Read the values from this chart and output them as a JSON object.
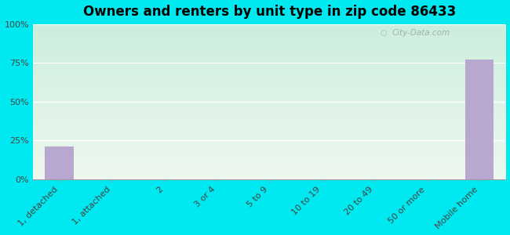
{
  "title": "Owners and renters by unit type in zip code 86433",
  "categories": [
    "1, detached",
    "1, attached",
    "2",
    "3 or 4",
    "5 to 9",
    "10 to 19",
    "20 to 49",
    "50 or more",
    "Mobile home"
  ],
  "values": [
    21,
    0,
    0,
    0,
    0,
    0,
    0,
    0,
    77
  ],
  "bar_color": "#b8a8d0",
  "background_outer": "#00e8f0",
  "ylim": [
    0,
    100
  ],
  "yticks": [
    0,
    25,
    50,
    75,
    100
  ],
  "ytick_labels": [
    "0%",
    "25%",
    "50%",
    "75%",
    "100%"
  ],
  "title_fontsize": 12,
  "tick_label_fontsize": 8,
  "watermark": "City-Data.com",
  "n_categories": 9
}
